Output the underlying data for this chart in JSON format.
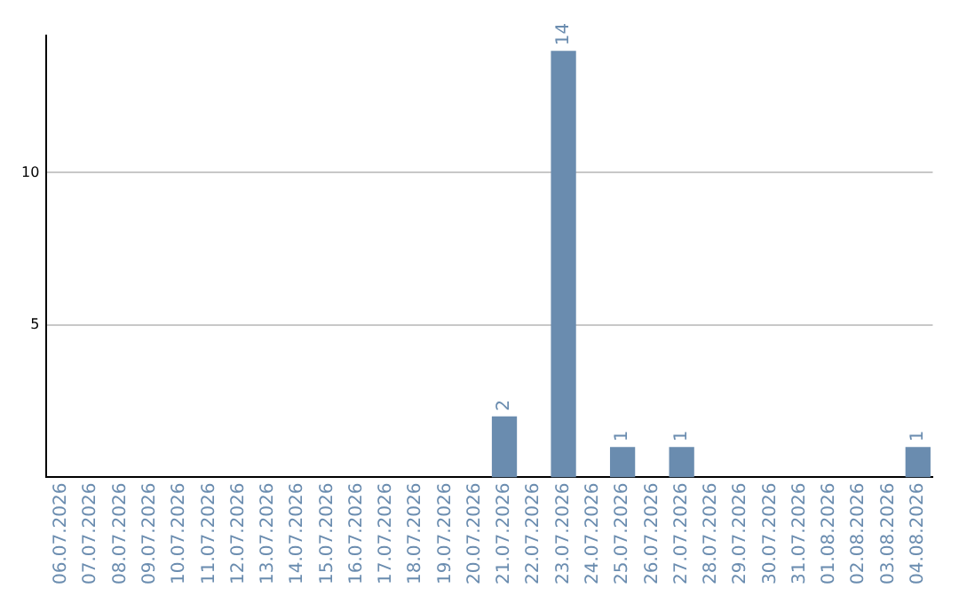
{
  "chart_data": {
    "type": "bar",
    "categories": [
      "06.07.2026",
      "07.07.2026",
      "08.07.2026",
      "09.07.2026",
      "10.07.2026",
      "11.07.2026",
      "12.07.2026",
      "13.07.2026",
      "14.07.2026",
      "15.07.2026",
      "16.07.2026",
      "17.07.2026",
      "18.07.2026",
      "19.07.2026",
      "20.07.2026",
      "21.07.2026",
      "22.07.2026",
      "23.07.2026",
      "24.07.2026",
      "25.07.2026",
      "26.07.2026",
      "27.07.2026",
      "28.07.2026",
      "29.07.2026",
      "30.07.2026",
      "31.07.2026",
      "01.08.2026",
      "02.08.2026",
      "03.08.2026",
      "04.08.2026"
    ],
    "values": [
      0,
      0,
      0,
      0,
      0,
      0,
      0,
      0,
      0,
      0,
      0,
      0,
      0,
      0,
      0,
      2,
      0,
      14,
      0,
      1,
      0,
      1,
      0,
      0,
      0,
      0,
      0,
      0,
      0,
      1
    ],
    "value_labels": [
      null,
      null,
      null,
      null,
      null,
      null,
      null,
      null,
      null,
      null,
      null,
      null,
      null,
      null,
      null,
      "2",
      null,
      "14",
      null,
      "1",
      null,
      "1",
      null,
      null,
      null,
      null,
      null,
      null,
      null,
      "1"
    ],
    "color": "#6a8caf",
    "ylim": [
      0,
      14.5
    ],
    "yticks": [
      5,
      10
    ],
    "grid": "y",
    "legend": false
  }
}
